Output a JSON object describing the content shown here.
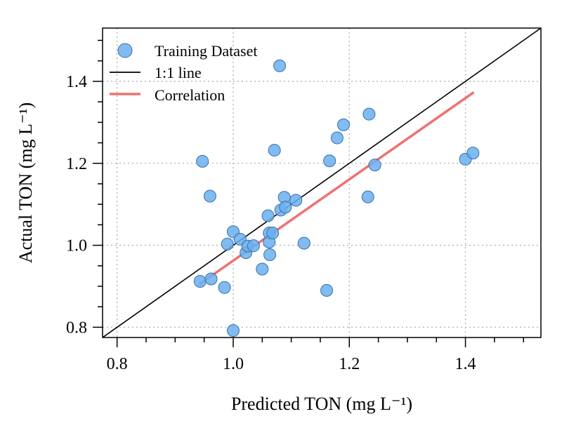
{
  "chart_data": {
    "type": "scatter",
    "xlabel": "Predicted TON (mg L⁻¹)",
    "ylabel": "Actual TON (mg L⁻¹)",
    "xlim": [
      0.775,
      1.53
    ],
    "ylim": [
      0.775,
      1.53
    ],
    "x_ticks": [
      "0.8",
      "1.0",
      "1.2",
      "1.4"
    ],
    "y_ticks": [
      "0.8",
      "1.0",
      "1.2",
      "1.4"
    ],
    "grid": true,
    "legend_position": "top-left",
    "legend": [
      {
        "label": "Training Dataset",
        "type": "marker",
        "color": "#6aaff0"
      },
      {
        "label": "1:1 line",
        "type": "line",
        "color": "#000000"
      },
      {
        "label": "Correlation",
        "type": "line",
        "color": "#f07070"
      }
    ],
    "series": [
      {
        "name": "Training Dataset",
        "color": "#6aaff0",
        "points": [
          [
            0.943,
            0.912
          ],
          [
            0.947,
            1.205
          ],
          [
            0.96,
            1.12
          ],
          [
            0.962,
            0.918
          ],
          [
            0.985,
            0.897
          ],
          [
            0.99,
            1.003
          ],
          [
            1.0,
            1.033
          ],
          [
            1.0,
            0.792
          ],
          [
            1.012,
            1.015
          ],
          [
            1.022,
            0.982
          ],
          [
            1.025,
            0.998
          ],
          [
            1.035,
            0.999
          ],
          [
            1.05,
            0.942
          ],
          [
            1.06,
            1.072
          ],
          [
            1.062,
            1.03
          ],
          [
            1.062,
            1.008
          ],
          [
            1.063,
            0.977
          ],
          [
            1.068,
            1.03
          ],
          [
            1.071,
            1.232
          ],
          [
            1.08,
            1.438
          ],
          [
            1.082,
            1.086
          ],
          [
            1.088,
            1.117
          ],
          [
            1.09,
            1.093
          ],
          [
            1.108,
            1.11
          ],
          [
            1.122,
            1.005
          ],
          [
            1.161,
            0.89
          ],
          [
            1.166,
            1.206
          ],
          [
            1.179,
            1.262
          ],
          [
            1.19,
            1.294
          ],
          [
            1.232,
            1.118
          ],
          [
            1.234,
            1.32
          ],
          [
            1.244,
            1.196
          ],
          [
            1.4,
            1.21
          ],
          [
            1.413,
            1.225
          ]
        ]
      },
      {
        "name": "1:1 line",
        "color": "#000000",
        "line": [
          [
            0.775,
            0.775
          ],
          [
            1.53,
            1.53
          ]
        ]
      },
      {
        "name": "Correlation",
        "color": "#f07070",
        "line": [
          [
            0.943,
            0.906
          ],
          [
            1.413,
            1.372
          ]
        ]
      }
    ]
  }
}
